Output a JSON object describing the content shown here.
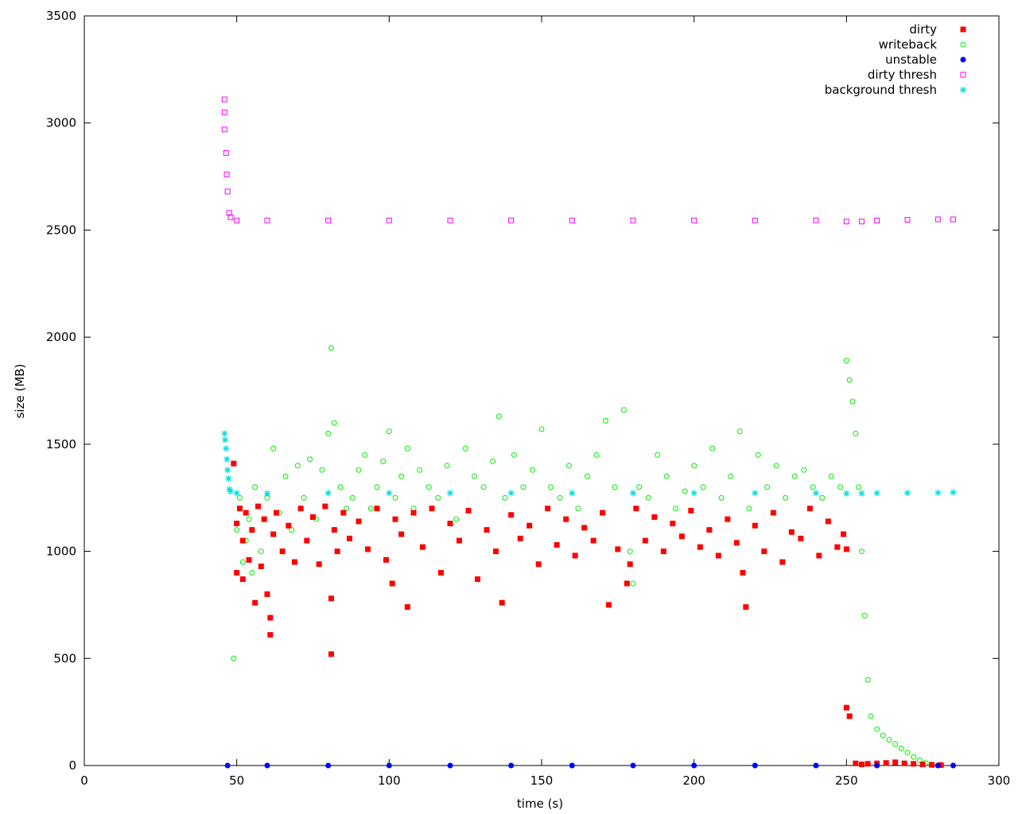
{
  "chart_data": {
    "type": "scatter",
    "title": "",
    "xlabel": "time (s)",
    "ylabel": "size (MB)",
    "xlim": [
      0,
      300
    ],
    "ylim": [
      0,
      3500
    ],
    "xticks": [
      0,
      50,
      100,
      150,
      200,
      250,
      300
    ],
    "yticks": [
      0,
      500,
      1000,
      1500,
      2000,
      2500,
      3000,
      3500
    ],
    "grid": false,
    "legend_position": "top-right",
    "series": [
      {
        "name": "dirty",
        "marker": "filled-square",
        "color": "#ff0000",
        "description_range": "t 47-250 s, mostly 600-1250 MB; drops to ~0-250 MB after 250 s",
        "x": [
          49,
          50,
          50,
          51,
          52,
          52,
          53,
          54,
          55,
          56,
          57,
          58,
          59,
          60,
          61,
          61,
          62,
          63,
          65,
          67,
          69,
          71,
          73,
          75,
          77,
          79,
          81,
          81,
          82,
          83,
          85,
          87,
          90,
          93,
          96,
          99,
          101,
          102,
          104,
          106,
          108,
          111,
          114,
          117,
          120,
          123,
          126,
          129,
          132,
          135,
          137,
          140,
          143,
          146,
          149,
          152,
          155,
          158,
          161,
          164,
          167,
          170,
          172,
          175,
          178,
          179,
          181,
          184,
          187,
          190,
          193,
          196,
          199,
          202,
          205,
          208,
          211,
          214,
          216,
          217,
          220,
          223,
          226,
          229,
          232,
          235,
          238,
          241,
          244,
          247,
          249,
          250,
          250,
          251,
          253,
          255,
          257,
          260,
          263,
          266,
          269,
          272,
          275,
          278,
          281
        ],
        "y": [
          1410,
          1130,
          900,
          1200,
          1050,
          870,
          1180,
          960,
          1100,
          760,
          1210,
          930,
          1150,
          800,
          690,
          610,
          1080,
          1180,
          1000,
          1120,
          950,
          1200,
          1050,
          1160,
          940,
          1210,
          520,
          780,
          1100,
          1000,
          1180,
          1060,
          1140,
          1010,
          1200,
          960,
          850,
          1150,
          1080,
          740,
          1180,
          1020,
          1200,
          900,
          1130,
          1050,
          1190,
          870,
          1100,
          1000,
          760,
          1170,
          1060,
          1120,
          940,
          1200,
          1030,
          1150,
          980,
          1110,
          1050,
          1180,
          750,
          1010,
          850,
          940,
          1200,
          1050,
          1160,
          1000,
          1130,
          1070,
          1190,
          1020,
          1100,
          980,
          1150,
          1040,
          900,
          740,
          1120,
          1000,
          1180,
          950,
          1090,
          1060,
          1200,
          980,
          1140,
          1020,
          1080,
          1010,
          270,
          230,
          10,
          5,
          8,
          10,
          12,
          15,
          10,
          8,
          5,
          3,
          2
        ]
      },
      {
        "name": "writeback",
        "marker": "open-circle",
        "color": "#00ee00",
        "description_range": "t 49-250 s, mostly 850-1650 MB; peaks ~1950 MB at ~81 s and ~1890 MB at ~250 s; decays to 0 by ~280 s",
        "x": [
          49,
          50,
          51,
          52,
          53,
          54,
          55,
          56,
          58,
          60,
          62,
          64,
          66,
          68,
          70,
          72,
          74,
          76,
          78,
          80,
          81,
          82,
          84,
          86,
          88,
          90,
          92,
          94,
          96,
          98,
          100,
          102,
          104,
          106,
          108,
          110,
          113,
          116,
          119,
          122,
          125,
          128,
          131,
          134,
          136,
          138,
          141,
          144,
          147,
          150,
          153,
          156,
          159,
          162,
          165,
          168,
          171,
          174,
          177,
          179,
          180,
          182,
          185,
          188,
          191,
          194,
          197,
          200,
          203,
          206,
          209,
          212,
          215,
          218,
          221,
          224,
          227,
          230,
          233,
          236,
          239,
          242,
          245,
          248,
          250,
          251,
          252,
          253,
          254,
          255,
          256,
          257,
          258,
          260,
          262,
          264,
          266,
          268,
          270,
          272,
          274,
          276,
          278,
          280
        ],
        "y": [
          500,
          1100,
          1250,
          950,
          1050,
          1150,
          900,
          1300,
          1000,
          1250,
          1480,
          1180,
          1350,
          1100,
          1400,
          1250,
          1430,
          1150,
          1380,
          1550,
          1950,
          1600,
          1300,
          1200,
          1250,
          1380,
          1450,
          1200,
          1300,
          1420,
          1560,
          1250,
          1350,
          1480,
          1200,
          1380,
          1300,
          1250,
          1400,
          1150,
          1480,
          1350,
          1300,
          1420,
          1630,
          1250,
          1450,
          1300,
          1380,
          1570,
          1300,
          1250,
          1400,
          1200,
          1350,
          1450,
          1610,
          1300,
          1660,
          1000,
          850,
          1300,
          1250,
          1450,
          1350,
          1200,
          1280,
          1400,
          1300,
          1480,
          1250,
          1350,
          1560,
          1200,
          1450,
          1300,
          1400,
          1250,
          1350,
          1380,
          1300,
          1250,
          1350,
          1300,
          1890,
          1800,
          1700,
          1550,
          1300,
          1000,
          700,
          400,
          230,
          170,
          140,
          120,
          100,
          80,
          60,
          40,
          25,
          12,
          5,
          0
        ]
      },
      {
        "name": "unstable",
        "marker": "filled-circle",
        "color": "#0000ff",
        "description_range": "constant ~0 MB from 47 s to 285 s",
        "x": [
          47,
          60,
          80,
          100,
          120,
          140,
          160,
          180,
          200,
          220,
          240,
          260,
          280,
          285
        ],
        "y": [
          0,
          0,
          0,
          0,
          0,
          0,
          0,
          0,
          0,
          0,
          0,
          0,
          0,
          0
        ]
      },
      {
        "name": "dirty thresh",
        "marker": "open-square",
        "color": "#ff00ff",
        "description_range": "starts ~3110 MB at 46 s, drops to ~2550 MB by 48 s, flat ~2545 MB to 285 s",
        "x": [
          46,
          46,
          46,
          46.5,
          46.7,
          47,
          47.5,
          48,
          50,
          60,
          80,
          100,
          120,
          140,
          160,
          180,
          200,
          220,
          240,
          250,
          255,
          260,
          270,
          280,
          285
        ],
        "y": [
          3110,
          3050,
          2970,
          2860,
          2760,
          2680,
          2580,
          2560,
          2545,
          2545,
          2545,
          2545,
          2545,
          2545,
          2545,
          2545,
          2545,
          2545,
          2545,
          2540,
          2540,
          2545,
          2548,
          2550,
          2550
        ]
      },
      {
        "name": "background thresh",
        "marker": "star",
        "color": "#00e0e0",
        "description_range": "starts ~1550 MB at 46 s, drops to ~1280 MB by 48 s, flat ~1272 MB to 285 s",
        "x": [
          46,
          46.2,
          46.5,
          46.8,
          47,
          47.3,
          47.6,
          48,
          50,
          60,
          80,
          100,
          120,
          140,
          160,
          180,
          200,
          220,
          240,
          250,
          255,
          260,
          270,
          280,
          285
        ],
        "y": [
          1550,
          1520,
          1480,
          1430,
          1380,
          1340,
          1290,
          1280,
          1272,
          1270,
          1272,
          1272,
          1272,
          1272,
          1272,
          1272,
          1272,
          1272,
          1272,
          1270,
          1270,
          1272,
          1273,
          1274,
          1275
        ]
      }
    ]
  }
}
